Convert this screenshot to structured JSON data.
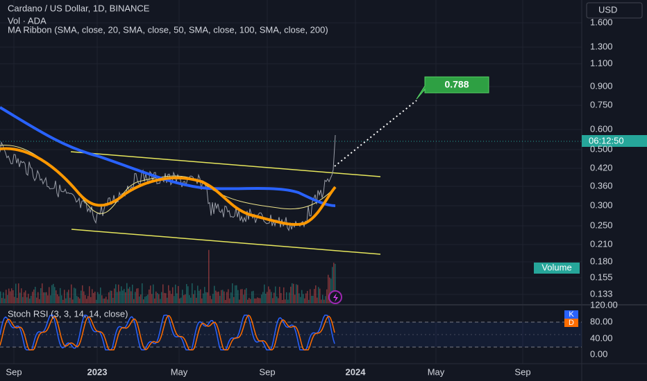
{
  "header": {
    "symbol": "Cardano / US Dollar, 1D, BINANCE",
    "volume": "Vol · ADA",
    "ribbon": "MA Ribbon (SMA, close, 20, SMA, close, 50, SMA, close, 100, SMA, close, 200)"
  },
  "currency": "USD",
  "price_axis": [
    "1.600",
    "1.300",
    "1.100",
    "0.900",
    "0.750",
    "0.600",
    "0.500",
    "0.420",
    "0.360",
    "0.300",
    "0.250",
    "0.210",
    "0.180",
    "0.155",
    "0.133"
  ],
  "countdown": "06:12:50",
  "target_label": "0.788",
  "volume_label": "Volume",
  "stoch": {
    "title": "Stoch RSI (3, 3, 14, 14, close)",
    "axis": [
      "120.00",
      "80.00",
      "40.00",
      "0.00"
    ],
    "k": "K",
    "d": "D"
  },
  "time_axis": [
    "Sep",
    "2023",
    "May",
    "Sep",
    "2024",
    "May",
    "Sep"
  ]
}
